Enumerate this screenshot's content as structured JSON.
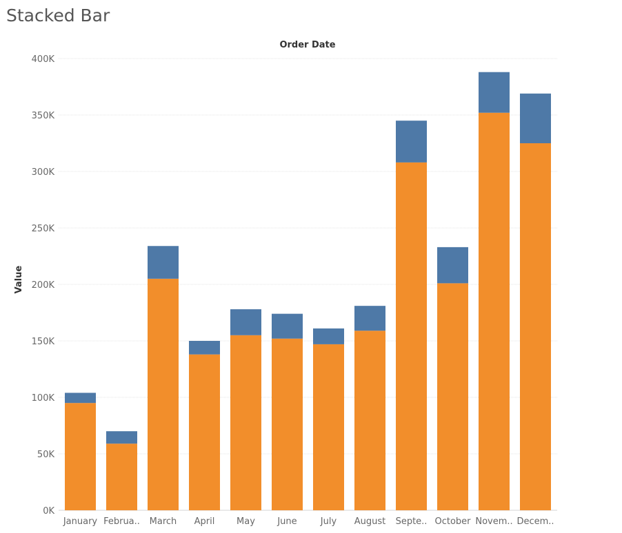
{
  "page": {
    "title": "Stacked Bar"
  },
  "chart_data": {
    "type": "bar",
    "stacked": true,
    "title": "",
    "column_header": "Order Date",
    "xlabel": "",
    "ylabel": "Value",
    "categories": [
      "January",
      "February",
      "March",
      "April",
      "May",
      "June",
      "July",
      "August",
      "September",
      "October",
      "November",
      "December"
    ],
    "category_labels": [
      "January",
      "Februa..",
      "March",
      "April",
      "May",
      "June",
      "July",
      "August",
      "Septe..",
      "October",
      "Novem..",
      "Decem.."
    ],
    "series": [
      {
        "color": "#f28e2b",
        "values": [
          95000,
          59000,
          205000,
          138000,
          155000,
          152000,
          147000,
          159000,
          308000,
          201000,
          352000,
          325000
        ]
      },
      {
        "color": "#4e79a7",
        "values": [
          9000,
          11000,
          29000,
          12000,
          23000,
          22000,
          14000,
          22000,
          37000,
          32000,
          36000,
          44000
        ]
      }
    ],
    "ylim": [
      0,
      400000
    ],
    "yticks": [
      0,
      50000,
      100000,
      150000,
      200000,
      250000,
      300000,
      350000,
      400000
    ],
    "ytick_labels": [
      "0K",
      "50K",
      "100K",
      "150K",
      "200K",
      "250K",
      "300K",
      "350K",
      "400K"
    ],
    "grid": true,
    "legend": "none"
  }
}
